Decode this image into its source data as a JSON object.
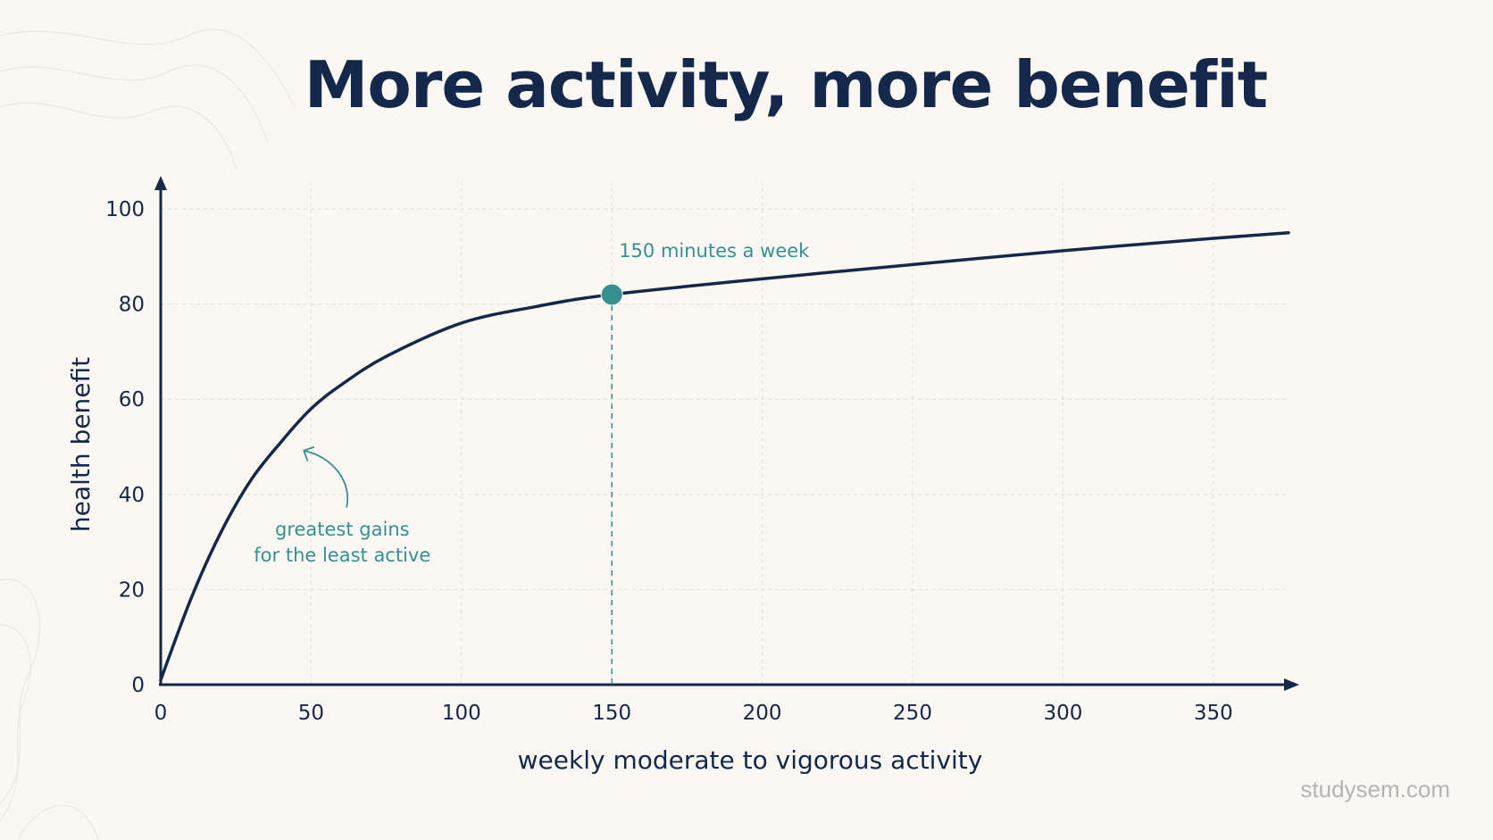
{
  "colors": {
    "background": "#fbf8f3",
    "ink": "#13284a",
    "accent": "#35908f",
    "watermark": "#b4b4b4"
  },
  "watermark": "studysem.com",
  "chart_data": {
    "type": "line",
    "title": "More activity, more benefit",
    "xlabel": "weekly moderate to vigorous activity",
    "ylabel": "health benefit",
    "xlim": [
      0,
      375
    ],
    "ylim": [
      0,
      100
    ],
    "x_ticks": [
      0,
      50,
      100,
      150,
      200,
      250,
      300,
      350
    ],
    "y_ticks": [
      0,
      20,
      40,
      60,
      80,
      100
    ],
    "grid": true,
    "series": [
      {
        "x": [
          0,
          10,
          20,
          30,
          40,
          50,
          60,
          75,
          100,
          125,
          150,
          200,
          250,
          300,
          350,
          375
        ],
        "y": [
          1,
          18,
          32,
          43,
          51,
          58,
          63,
          69,
          76,
          79.5,
          82,
          85.3,
          88.3,
          91.2,
          93.8,
          95
        ]
      }
    ],
    "annotations": [
      {
        "id": "highlight",
        "x": 150,
        "y": 82,
        "marker": "point",
        "dropline": true,
        "lines": [
          "150 minutes a week"
        ]
      },
      {
        "id": "gains",
        "x": 47,
        "y": 52,
        "marker": "arrow",
        "lines": [
          "greatest gains",
          "for the least active"
        ]
      }
    ]
  }
}
